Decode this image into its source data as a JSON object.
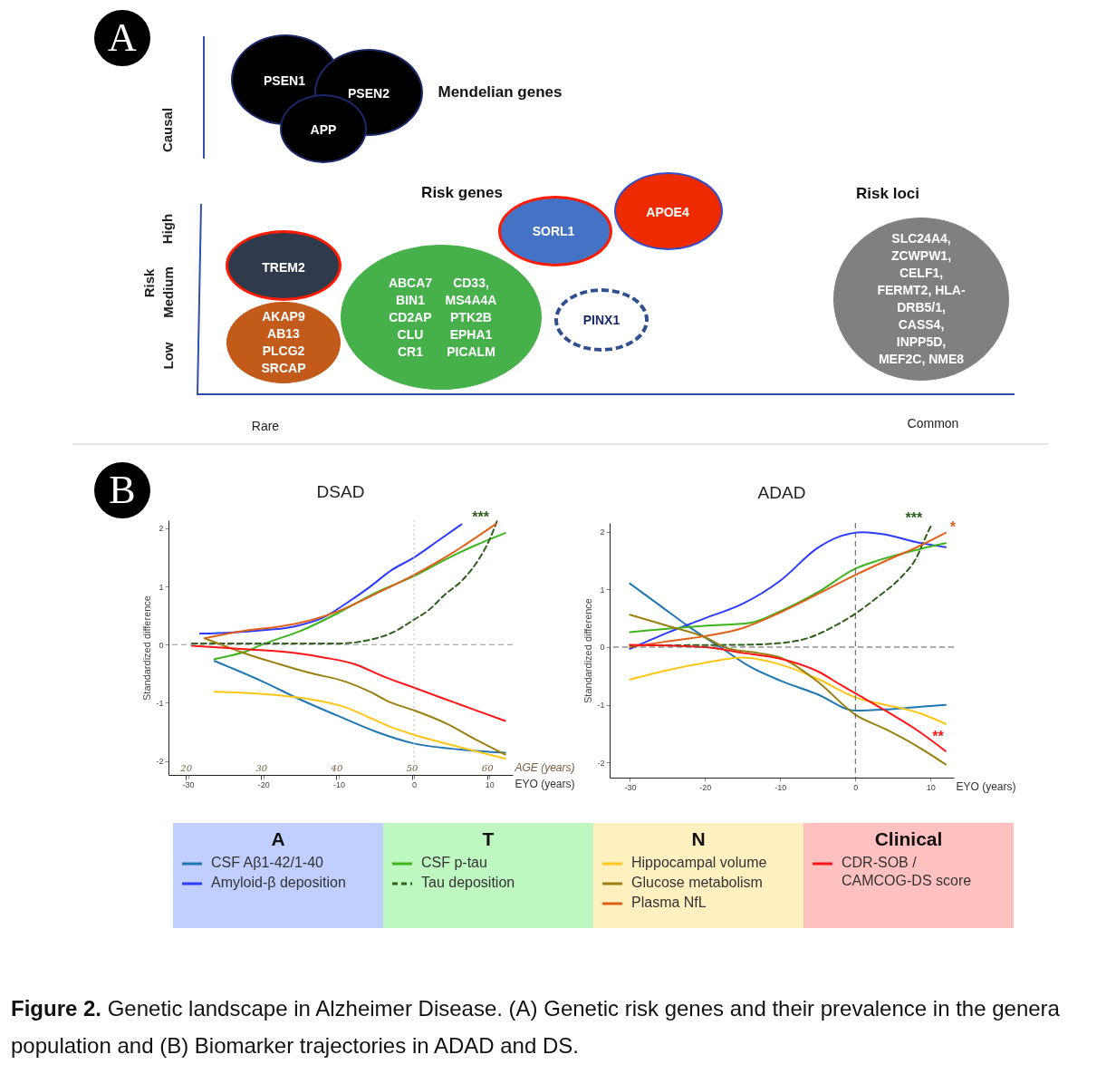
{
  "chart_data": [
    {
      "type": "other",
      "annotations": [
        "A",
        "Causal",
        "Risk",
        "High",
        "Medium",
        "Low",
        "Rare",
        "Common",
        "Mendelian genes",
        "Risk genes",
        "Risk loci",
        "PSEN1",
        "PSEN2",
        "APP",
        "SORL1",
        "APOE4",
        "TREM2",
        "AKAP9\nAB13\nPLCG2\nSRCAP",
        "ABCA7\nBIN1\nCD2AP\nCLU\nCR1",
        "CD33,\nMS4A4A\nPTK2B\nEPHA1\nPICALM",
        "PINX1",
        "SLC24A4,\nZCWPW1,\nCELF1,\nFERMT2, HLA-\nDRB5/1,\nCASS4,\nINPP5D,\nMEF2C, NME8",
        "Figure 2. Genetic landscape in Alzheimer Disease. (A) Genetic risk genes and their prevalence in the genera population and (B) Biomarker trajectories in ADAD and DS."
      ]
    },
    {
      "type": "line",
      "title": "DSAD",
      "xlabel": "EYO (years)",
      "x2label": "AGE (years)",
      "ylabel": "Standardized difference",
      "xlim": [
        -32.6,
        13.1
      ],
      "xticks": [
        -30,
        -20,
        -10,
        0,
        10
      ],
      "x2lim": [
        17.7,
        63.4
      ],
      "x2ticks": [
        20,
        30,
        40,
        50,
        60
      ],
      "ylim": [
        -2.24,
        2.14
      ],
      "yticks": [
        -2,
        -1,
        0,
        1,
        2
      ],
      "grid": false,
      "legend": "bottom",
      "ref_lines": [
        {
          "axis": "y",
          "value": 0,
          "color": "#999999",
          "line_style": "dashed"
        },
        {
          "axis": "x",
          "value": 0,
          "color": "#bbbbbb",
          "line_style": "dotted"
        }
      ],
      "annotations": [
        "B",
        {
          "text": "***",
          "x": 11,
          "y": 2.12
        },
        "A",
        "T",
        "N",
        "Clinical"
      ],
      "series": [
        {
          "name": "CSF Aβ1-42/1-40",
          "color": "#1f77b4",
          "x": [
            -26.5,
            -20,
            -15,
            -10,
            -5,
            0,
            5,
            12.1
          ],
          "values": [
            -0.28,
            -0.64,
            -0.95,
            -1.23,
            -1.5,
            -1.7,
            -1.79,
            -1.86
          ]
        },
        {
          "name": "Amyloid-β deposition",
          "color": "#2b3cff",
          "x": [
            -28.4,
            -24,
            -20,
            -16,
            -12,
            -9,
            -6,
            -3,
            0,
            3,
            6.3
          ],
          "values": [
            0.19,
            0.21,
            0.25,
            0.31,
            0.47,
            0.71,
            0.98,
            1.28,
            1.5,
            1.77,
            2.07
          ]
        },
        {
          "name": "CSF p-tau",
          "color": "#3cb51c",
          "x": [
            -26.5,
            -22,
            -20,
            -15,
            -10,
            -5,
            0,
            5,
            8,
            12.1
          ],
          "values": [
            -0.25,
            -0.1,
            0.01,
            0.24,
            0.55,
            0.9,
            1.18,
            1.52,
            1.7,
            1.92
          ]
        },
        {
          "name": "Tau deposition",
          "color": "#2e5f1d",
          "line_style": "dashed",
          "x": [
            -29.5,
            -20,
            -10,
            -6,
            -3,
            0,
            2,
            4,
            6.5,
            8.5,
            10,
            11
          ],
          "values": [
            0.02,
            0.02,
            0.02,
            0.08,
            0.2,
            0.43,
            0.6,
            0.85,
            1.12,
            1.45,
            1.8,
            2.12
          ]
        },
        {
          "name": "Hippocampal volume",
          "color": "#ffc517",
          "x": [
            -26.5,
            -20,
            -16,
            -12,
            -9,
            -6,
            -3,
            0,
            6,
            12.1
          ],
          "values": [
            -0.81,
            -0.85,
            -0.9,
            -0.98,
            -1.08,
            -1.25,
            -1.42,
            -1.55,
            -1.76,
            -1.96
          ]
        },
        {
          "name": "Glucose metabolism",
          "color": "#9b7f10",
          "x": [
            -27.8,
            -22,
            -18,
            -14,
            -9,
            -6,
            -3,
            0,
            4.5,
            8,
            12.1
          ],
          "values": [
            0.11,
            -0.17,
            -0.33,
            -0.48,
            -0.64,
            -0.8,
            -1.0,
            -1.13,
            -1.37,
            -1.62,
            -1.89
          ]
        },
        {
          "name": "Plasma NfL",
          "color": "#e0601a",
          "x": [
            -27.8,
            -22,
            -18,
            -14,
            -10,
            -5,
            0,
            5,
            10.9
          ],
          "values": [
            0.11,
            0.25,
            0.31,
            0.41,
            0.58,
            0.88,
            1.2,
            1.57,
            2.08
          ]
        },
        {
          "name": "CDR-SOB / CAMCOG-DS score",
          "color": "#ff1515",
          "x": [
            -29.5,
            -22,
            -16,
            -12,
            -8,
            -4,
            0,
            4,
            8,
            12.1
          ],
          "values": [
            -0.02,
            -0.08,
            -0.14,
            -0.22,
            -0.33,
            -0.55,
            -0.74,
            -0.93,
            -1.12,
            -1.31
          ]
        }
      ]
    },
    {
      "type": "line",
      "title": "ADAD",
      "xlabel": "EYO (years)",
      "ylabel": "Standardized difference",
      "xlim": [
        -32.7,
        13.1
      ],
      "xticks": [
        -30,
        -20,
        -10,
        0,
        10
      ],
      "ylim": [
        -2.26,
        2.15
      ],
      "yticks": [
        -2,
        -1,
        0,
        1,
        2
      ],
      "grid": false,
      "legend": "bottom",
      "ref_lines": [
        {
          "axis": "y",
          "value": 0,
          "color": "#555555",
          "line_style": "dashed"
        },
        {
          "axis": "x",
          "value": 0,
          "color": "#555555",
          "line_style": "dashed"
        }
      ],
      "annotations": [
        {
          "text": "***",
          "x": 10.2,
          "y": 2.14
        },
        {
          "text": "*",
          "x": 12,
          "y": 1.98
        },
        {
          "text": "**",
          "x": 11,
          "y": -1.71
        }
      ],
      "series": [
        {
          "name": "CSF Aβ1-42/1-40",
          "color": "#1f77b4",
          "x": [
            -30,
            -26,
            -22,
            -18,
            -14,
            -10,
            -5,
            0,
            4,
            8,
            12
          ],
          "values": [
            1.1,
            0.72,
            0.34,
            0,
            -0.34,
            -0.58,
            -0.82,
            -1.1,
            -1.08,
            -1.04,
            -1.0
          ]
        },
        {
          "name": "Amyloid-β deposition",
          "color": "#2b3cff",
          "x": [
            -30,
            -25,
            -20,
            -15,
            -10,
            -5,
            -2,
            1,
            4,
            8,
            12
          ],
          "values": [
            -0.03,
            0.25,
            0.5,
            0.75,
            1.15,
            1.72,
            1.92,
            1.99,
            1.95,
            1.82,
            1.73
          ]
        },
        {
          "name": "CSF p-tau",
          "color": "#3cb51c",
          "x": [
            -30,
            -20,
            -14,
            -10,
            -5,
            0,
            3,
            8,
            12
          ],
          "values": [
            0.26,
            0.37,
            0.42,
            0.62,
            0.95,
            1.36,
            1.5,
            1.68,
            1.8
          ]
        },
        {
          "name": "Tau deposition",
          "color": "#2e5f1d",
          "line_style": "dashed",
          "x": [
            -30,
            -15,
            -10,
            -6,
            -3,
            0,
            3,
            6,
            8,
            9.5,
            10.2
          ],
          "values": [
            0.03,
            0.04,
            0.07,
            0.17,
            0.35,
            0.58,
            0.87,
            1.2,
            1.52,
            1.95,
            2.14
          ]
        },
        {
          "name": "Hippocampal volume",
          "color": "#ffc517",
          "x": [
            -30,
            -25,
            -20,
            -15,
            -10,
            -5,
            0,
            4,
            8,
            12
          ],
          "values": [
            -0.56,
            -0.4,
            -0.27,
            -0.18,
            -0.3,
            -0.55,
            -0.87,
            -1.0,
            -1.12,
            -1.33
          ]
        },
        {
          "name": "Glucose metabolism",
          "color": "#9b7f10",
          "x": [
            -30,
            -25,
            -20,
            -17,
            -13,
            -10,
            -5,
            0,
            4,
            8,
            12
          ],
          "values": [
            0.56,
            0.37,
            0.17,
            -0.02,
            -0.1,
            -0.18,
            -0.6,
            -1.17,
            -1.42,
            -1.7,
            -2.03
          ]
        },
        {
          "name": "Plasma NfL",
          "color": "#e0601a",
          "x": [
            -30,
            -25,
            -20,
            -15,
            -10,
            -5,
            0,
            5,
            8,
            12
          ],
          "values": [
            0.0,
            0.1,
            0.19,
            0.33,
            0.6,
            0.92,
            1.25,
            1.55,
            1.72,
            1.98
          ]
        },
        {
          "name": "CDR-SOB / CAMCOG-DS score",
          "color": "#ff1515",
          "x": [
            -30,
            -20,
            -15,
            -10,
            -5,
            -2,
            0,
            4,
            8,
            12
          ],
          "values": [
            0.04,
            0,
            -0.1,
            -0.2,
            -0.42,
            -0.65,
            -0.8,
            -1.1,
            -1.42,
            -1.8
          ]
        }
      ]
    }
  ]
}
